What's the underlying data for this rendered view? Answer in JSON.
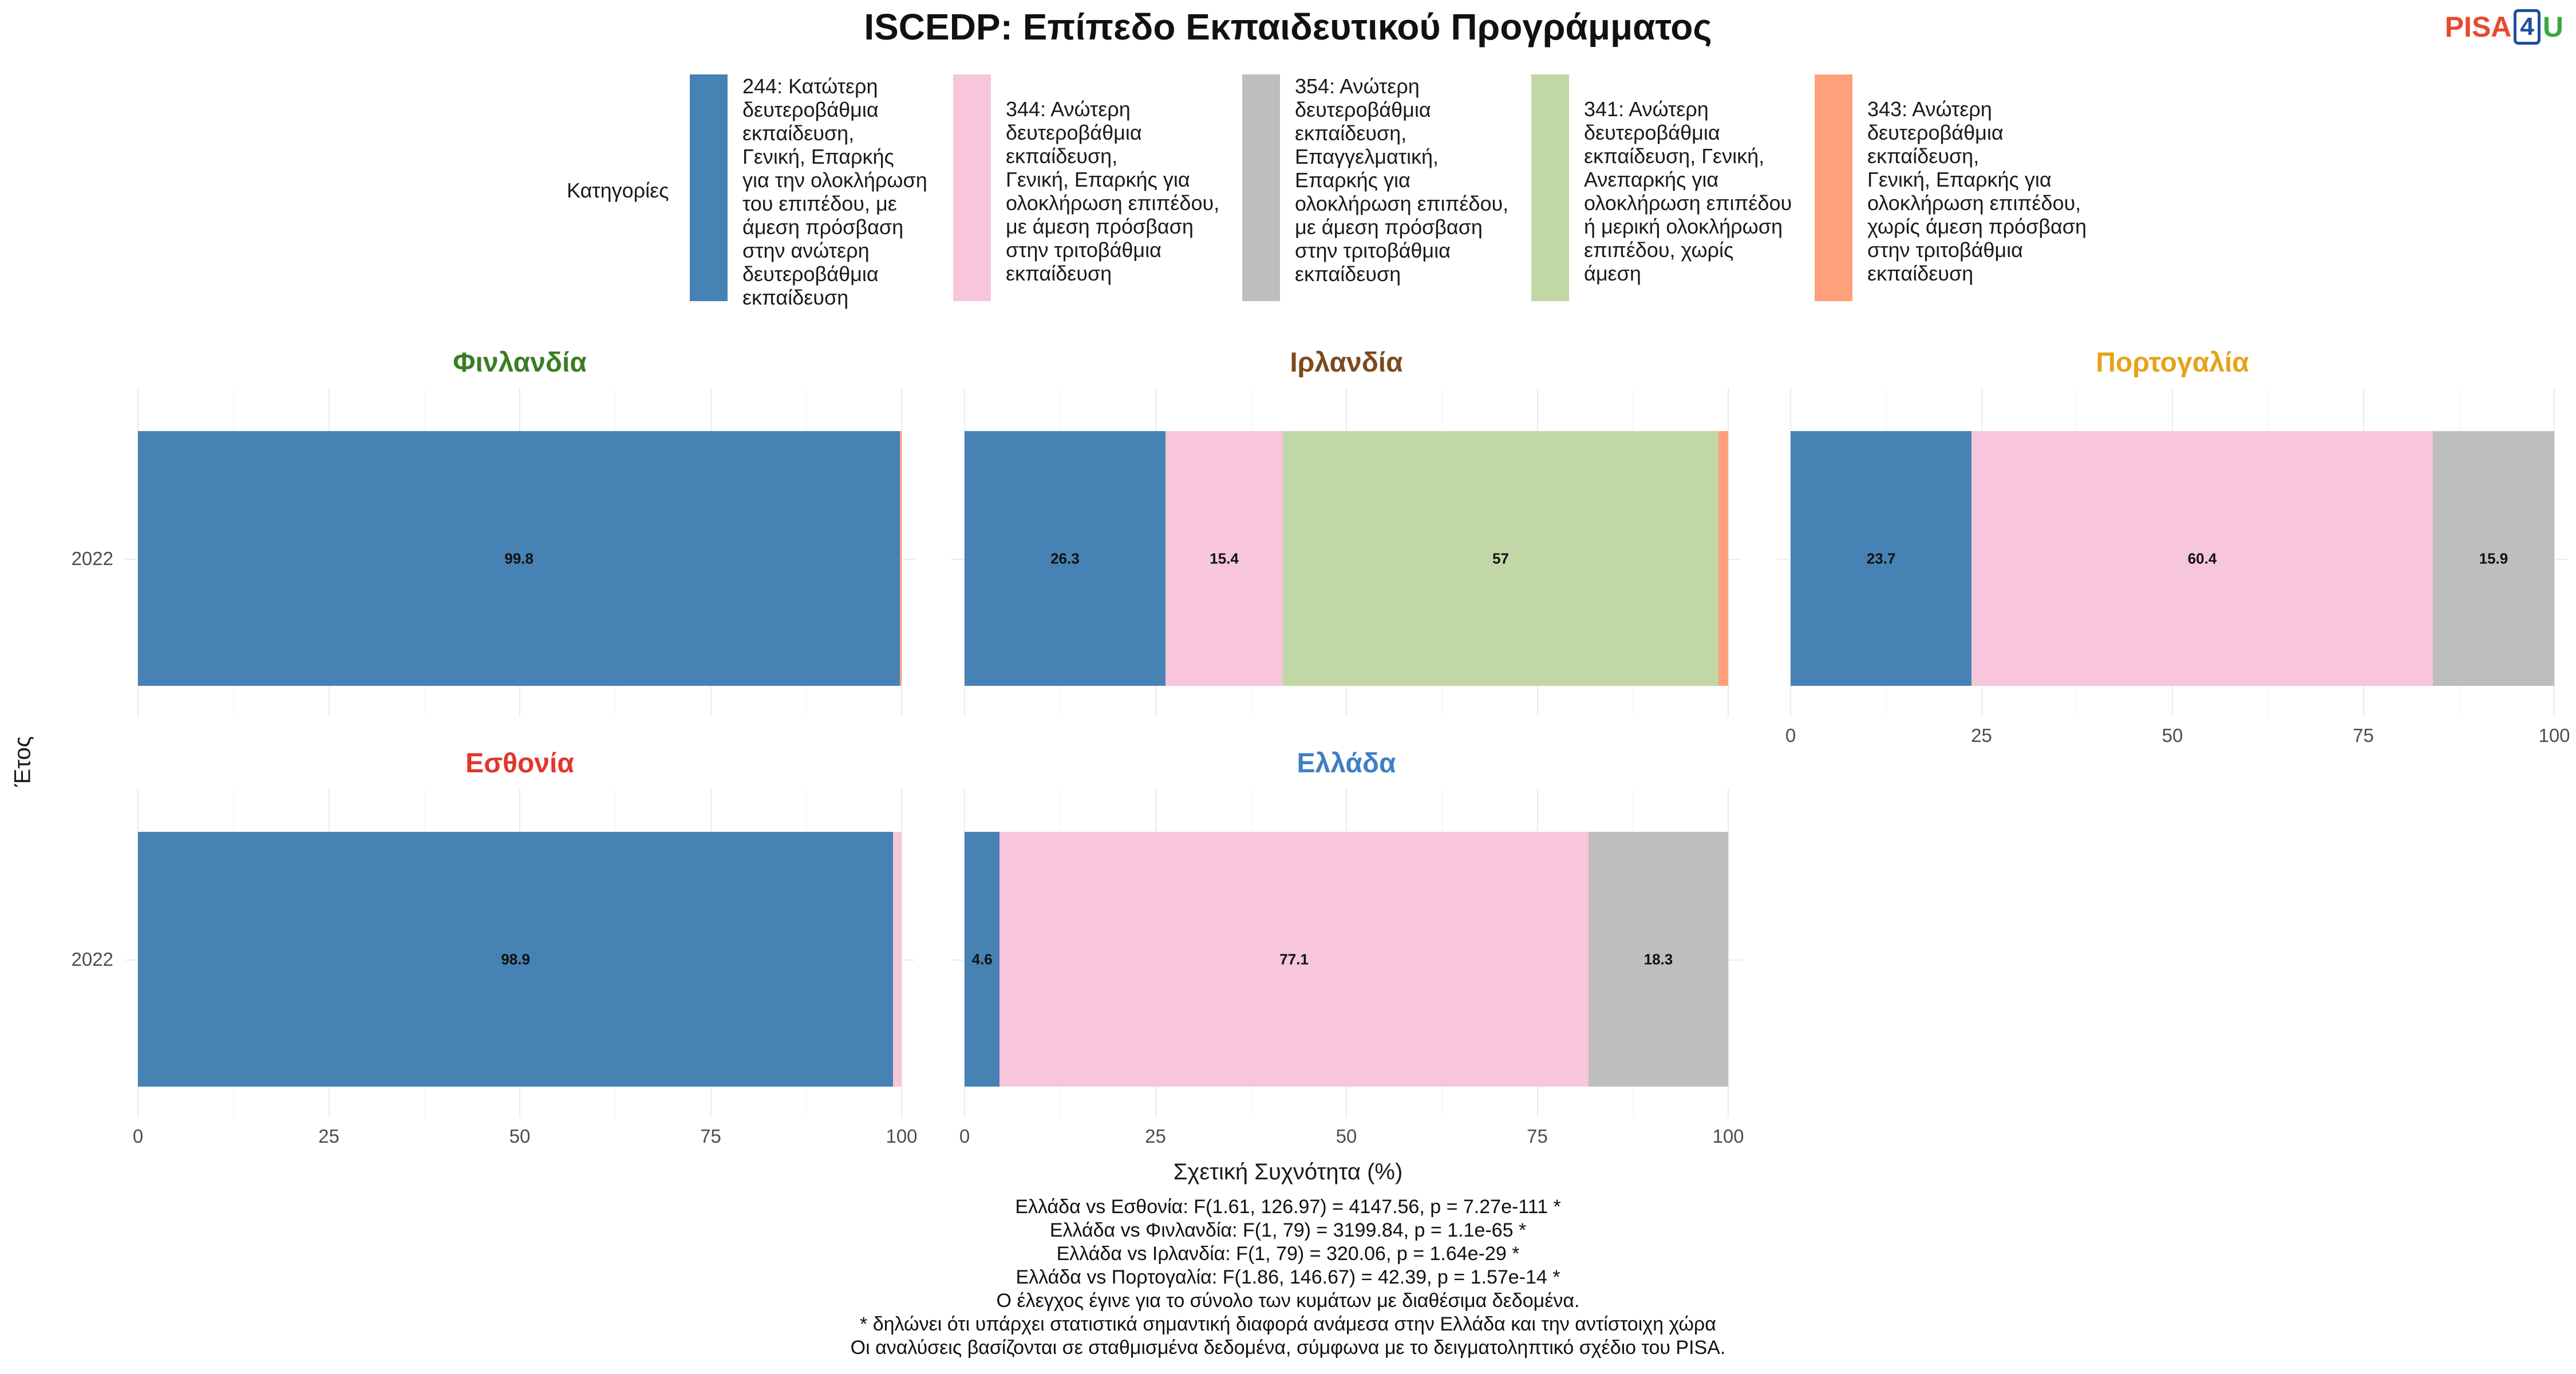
{
  "title": "ISCEDP: Επίπεδο Εκπαιδευτικού Προγράμματος",
  "logo": {
    "pisa": "PISA",
    "four": "4",
    "u": "U"
  },
  "legend": {
    "title": "Κατηγορίες",
    "items": [
      {
        "label": "244: Κατώτερη\nδευτεροβάθμια\nεκπαίδευση,\nΓενική, Επαρκής\nγια την ολοκλήρωση\nτου επιπέδου, με\nάμεση πρόσβαση\nστην ανώτερη\nδευτεροβάθμια\nεκπαίδευση",
        "color": "#4682B4"
      },
      {
        "label": "344: Ανώτερη\nδευτεροβάθμια\nεκπαίδευση,\nΓενική, Επαρκής για\nολοκλήρωση επιπέδου,\nμε άμεση πρόσβαση\nστην τριτοβάθμια\nεκπαίδευση",
        "color": "#F7C6DB"
      },
      {
        "label": "354: Ανώτερη\nδευτεροβάθμια\nεκπαίδευση,\nΕπαγγελματική,\nΕπαρκής για\nολοκλήρωση επιπέδου,\nμε άμεση πρόσβαση\nστην τριτοβάθμια\nεκπαίδευση",
        "color": "#BEBEBE"
      },
      {
        "label": "341: Ανώτερη\nδευτεροβάθμια\nεκπαίδευση, Γενική,\nΑνεπαρκής για\nολοκλήρωση επιπέδου\nή μερική ολοκλήρωση\nεπιπέδου, χωρίς\nάμεση",
        "color": "#C2D7A6"
      },
      {
        "label": "343: Ανώτερη\nδευτεροβάθμια\nεκπαίδευση,\nΓενική, Επαρκής για\nολοκλήρωση επιπέδου,\nχωρίς άμεση πρόσβαση\nστην τριτοβάθμια\nεκπαίδευση",
        "color": "#FFA07A"
      }
    ]
  },
  "chart_data": {
    "type": "bar",
    "orientation": "horizontal",
    "stacked": true,
    "xlabel": "Σχετική Συχνότητα (%)",
    "ylabel": "Έτος",
    "xlim": [
      0,
      100
    ],
    "xticks": [
      "0",
      "25",
      "50",
      "75",
      "100"
    ],
    "categories": [
      "2022"
    ],
    "grid": true,
    "legend_position": "top",
    "facets": [
      {
        "title": "Φινλανδία",
        "title_color": "#3a7d23",
        "segments": [
          {
            "series": "244",
            "value": 99.8,
            "label": "99.8"
          },
          {
            "series": "343",
            "value": 0.2,
            "label": ""
          }
        ]
      },
      {
        "title": "Ιρλανδία",
        "title_color": "#7b4a1e",
        "segments": [
          {
            "series": "244",
            "value": 26.3,
            "label": "26.3"
          },
          {
            "series": "344",
            "value": 15.4,
            "label": "15.4"
          },
          {
            "series": "341",
            "value": 57,
            "label": "57"
          },
          {
            "series": "343",
            "value": 1.3,
            "label": ""
          }
        ]
      },
      {
        "title": "Πορτογαλία",
        "title_color": "#e5a21b",
        "segments": [
          {
            "series": "244",
            "value": 23.7,
            "label": "23.7"
          },
          {
            "series": "344",
            "value": 60.4,
            "label": "60.4"
          },
          {
            "series": "354",
            "value": 15.9,
            "label": "15.9"
          }
        ]
      },
      {
        "title": "Εσθονία",
        "title_color": "#e0362b",
        "segments": [
          {
            "series": "244",
            "value": 98.9,
            "label": "98.9"
          },
          {
            "series": "344",
            "value": 1.1,
            "label": ""
          }
        ]
      },
      {
        "title": "Ελλάδα",
        "title_color": "#3f7fc2",
        "segments": [
          {
            "series": "244",
            "value": 4.6,
            "label": "4.6"
          },
          {
            "series": "344",
            "value": 77.1,
            "label": "77.1"
          },
          {
            "series": "354",
            "value": 18.3,
            "label": "18.3"
          }
        ]
      }
    ]
  },
  "notes": [
    "Ελλάδα vs Εσθονία: F(1.61, 126.97) = 4147.56, p = 7.27e-111 *",
    "Ελλάδα vs Φινλανδία: F(1, 79) = 3199.84, p = 1.1e-65 *",
    "Ελλάδα vs Ιρλανδία: F(1, 79) = 320.06, p = 1.64e-29 *",
    "Ελλάδα vs Πορτογαλία: F(1.86, 146.67) = 42.39, p = 1.57e-14 *",
    "Ο έλεγχος έγινε για το σύνολο των κυμάτων με διαθέσιμα δεδομένα.",
    "* δηλώνει ότι υπάρχει στατιστικά σημαντική διαφορά ανάμεσα στην Ελλάδα και την αντίστοιχη χώρα",
    "Οι αναλύσεις βασίζονται σε σταθμισμένα δεδομένα, σύμφωνα με το δειγματοληπτικό σχέδιο του PISA."
  ]
}
